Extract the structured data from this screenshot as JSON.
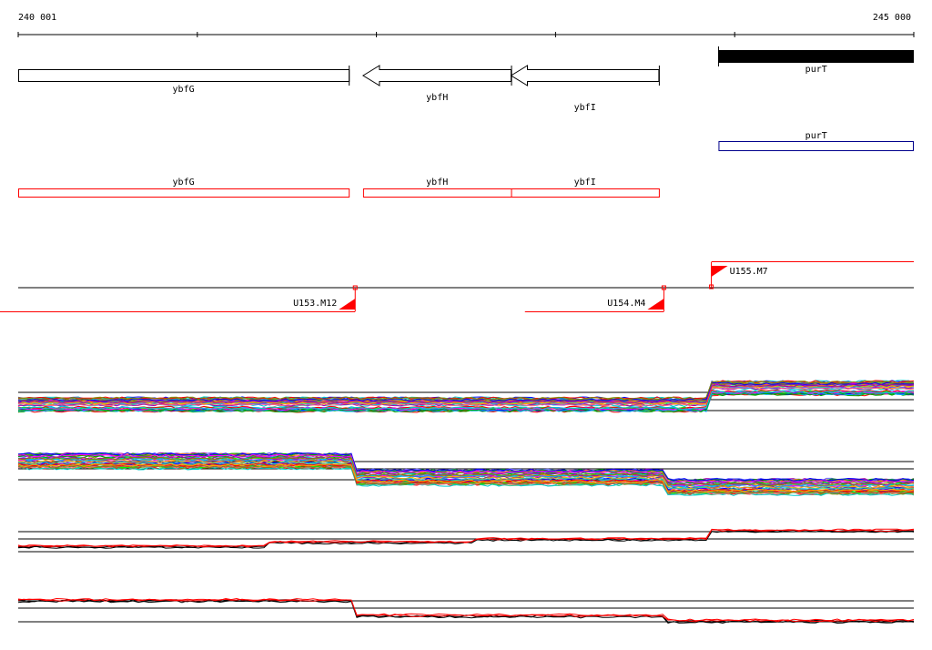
{
  "ruler": {
    "start_label": "240 001",
    "end_label": "245 000",
    "start": 240001,
    "end": 245000
  },
  "genes": [
    {
      "name": "ybfG",
      "strand": "+",
      "start": 240001,
      "end": 241846
    },
    {
      "name": "ybfH",
      "strand": "-",
      "start": 241926,
      "end": 242752
    },
    {
      "name": "ybfI",
      "strand": "-",
      "start": 242752,
      "end": 243577
    },
    {
      "name": "purT",
      "strand": "+",
      "start": 243910,
      "end": 245000
    }
  ],
  "cds_track": [
    {
      "name": "purT",
      "color": "#00008b",
      "start": 243910,
      "end": 245000
    }
  ],
  "operon_track": [
    {
      "name": "ybfG",
      "color": "#ff0000",
      "start": 240001,
      "end": 241846
    },
    {
      "name": "ybfH",
      "color": "#ff0000",
      "start": 241926,
      "end": 242752
    },
    {
      "name": "ybfI",
      "color": "#ff0000",
      "start": 242752,
      "end": 243577
    }
  ],
  "transcripts": [
    {
      "name": "U153.M12",
      "strand": "-",
      "tss": 241882
    },
    {
      "name": "U154.M4",
      "strand": "-",
      "tss": 243605
    },
    {
      "name": "U155.M7",
      "strand": "+",
      "tss": 243870
    }
  ],
  "expression_tracks": [
    {
      "name": "plus_strand_replicates",
      "segments": [
        [
          240001,
          243870,
          0.35
        ],
        [
          243870,
          245000,
          0.75
        ]
      ],
      "multicolor": true
    },
    {
      "name": "minus_strand_replicates",
      "segments": [
        [
          240001,
          241882,
          0.75
        ],
        [
          241882,
          243605,
          0.4
        ],
        [
          243605,
          245000,
          0.2
        ]
      ],
      "multicolor": true
    },
    {
      "name": "plus_strand_mean",
      "segments": [
        [
          240001,
          241400,
          0.3
        ],
        [
          241400,
          242550,
          0.45
        ],
        [
          242550,
          243870,
          0.55
        ],
        [
          243870,
          245000,
          0.85
        ]
      ],
      "multicolor": false
    },
    {
      "name": "minus_strand_mean",
      "segments": [
        [
          240001,
          241882,
          0.8
        ],
        [
          241882,
          243605,
          0.35
        ],
        [
          243605,
          245000,
          0.2
        ]
      ],
      "multicolor": false
    }
  ],
  "colors": {
    "gene_outline": "#000000",
    "gene_fill_filled": "#000000",
    "cds_outline": "#00008b",
    "operon_outline": "#ff0000",
    "transcript_line": "#ff0000",
    "axis": "#000000"
  }
}
